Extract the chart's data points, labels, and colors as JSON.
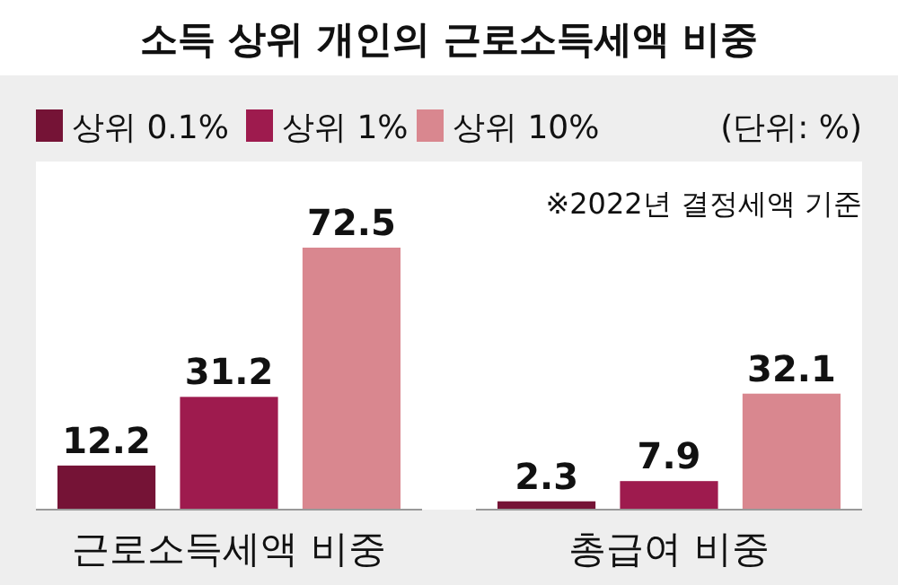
{
  "chart_data": {
    "type": "bar",
    "title": "소득 상위 개인의 근로소득세액 비중",
    "categories": [
      "근로소득세액 비중",
      "총급여 비중"
    ],
    "series": [
      {
        "name": "상위 0.1%",
        "color": "#751336",
        "values": [
          12.2,
          2.3
        ]
      },
      {
        "name": "상위 1%",
        "color": "#9e1b4e",
        "values": [
          31.2,
          7.9
        ]
      },
      {
        "name": "상위 10%",
        "color": "#d9878f",
        "values": [
          72.5,
          32.1
        ]
      }
    ],
    "data_labels": true,
    "legend": "top left",
    "annotations": [
      "(단위: %)",
      "※2022년 결정세액 기준"
    ]
  }
}
